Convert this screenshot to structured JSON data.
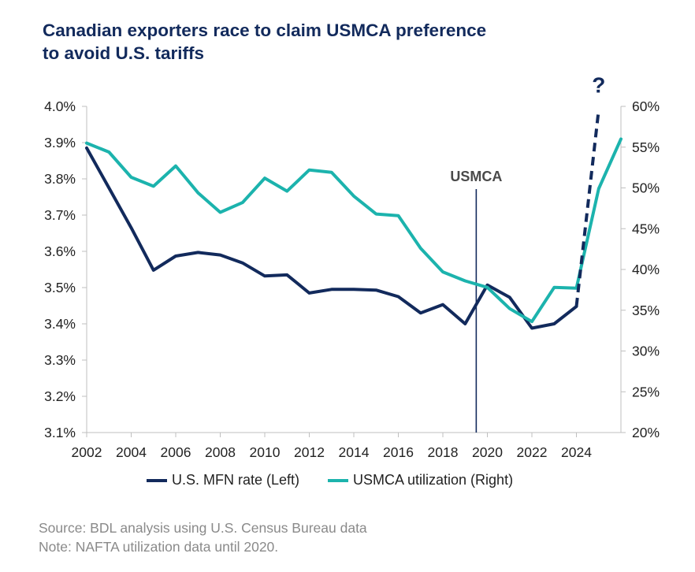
{
  "title_line1": "Canadian exporters race to claim USMCA preference",
  "title_line2": "to avoid U.S. tariffs",
  "colors": {
    "title": "#122a5c",
    "mfn": "#122a5c",
    "usmca": "#1cb3ad",
    "axis_text": "#222222",
    "note_text": "#8a8a8a"
  },
  "chart_data": {
    "type": "line",
    "x_ticks": [
      "2002",
      "2004",
      "2006",
      "2008",
      "2010",
      "2012",
      "2014",
      "2016",
      "2018",
      "2020",
      "2022",
      "2024"
    ],
    "xlim": [
      2002,
      2026
    ],
    "y_left": {
      "ylim": [
        3.1,
        4.0
      ],
      "ticks": [
        "3.1%",
        "3.2%",
        "3.3%",
        "3.4%",
        "3.5%",
        "3.6%",
        "3.7%",
        "3.8%",
        "3.9%",
        "4.0%"
      ]
    },
    "y_right": {
      "ylim": [
        20,
        60
      ],
      "ticks": [
        "20%",
        "25%",
        "30%",
        "35%",
        "40%",
        "45%",
        "50%",
        "55%",
        "60%"
      ]
    },
    "series": [
      {
        "name": "U.S. MFN rate (Left)",
        "axis": "left",
        "x": [
          2002,
          2003,
          2004,
          2005,
          2006,
          2007,
          2008,
          2009,
          2010,
          2011,
          2012,
          2013,
          2014,
          2015,
          2016,
          2017,
          2018,
          2019,
          2020,
          2021,
          2022,
          2023,
          2024
        ],
        "values": [
          3.885,
          3.775,
          3.665,
          3.548,
          3.587,
          3.597,
          3.59,
          3.568,
          3.532,
          3.535,
          3.485,
          3.495,
          3.495,
          3.493,
          3.475,
          3.43,
          3.453,
          3.4,
          3.507,
          3.473,
          3.388,
          3.4,
          3.448
        ]
      },
      {
        "name": "USMCA utilization (Right)",
        "axis": "right",
        "x": [
          2002,
          2003,
          2004,
          2005,
          2006,
          2007,
          2008,
          2009,
          2010,
          2011,
          2012,
          2013,
          2014,
          2015,
          2016,
          2017,
          2018,
          2019,
          2020,
          2021,
          2022,
          2023,
          2024,
          2025,
          2026
        ],
        "values": [
          55.5,
          54.4,
          51.3,
          50.2,
          52.7,
          49.4,
          47.0,
          48.2,
          51.2,
          49.6,
          52.2,
          51.9,
          49.0,
          46.8,
          46.6,
          42.6,
          39.7,
          38.6,
          37.8,
          35.2,
          33.6,
          37.8,
          37.7,
          49.9,
          56.0
        ]
      }
    ],
    "projection": {
      "series": "U.S. MFN rate (Left)",
      "style": "dashed",
      "from": [
        2024,
        3.448
      ],
      "to": [
        2025,
        3.99
      ],
      "label": "?"
    },
    "annotation": {
      "label": "USMCA",
      "x": 2019.5
    },
    "legend_placement": "bottom",
    "grid": false
  },
  "legend": {
    "mfn_label": "U.S. MFN rate (Left)",
    "usmca_label": "USMCA utilization (Right)"
  },
  "source_line": "Source: BDL analysis using U.S. Census Bureau data",
  "note_line": "Note: NAFTA utilization data until 2020."
}
